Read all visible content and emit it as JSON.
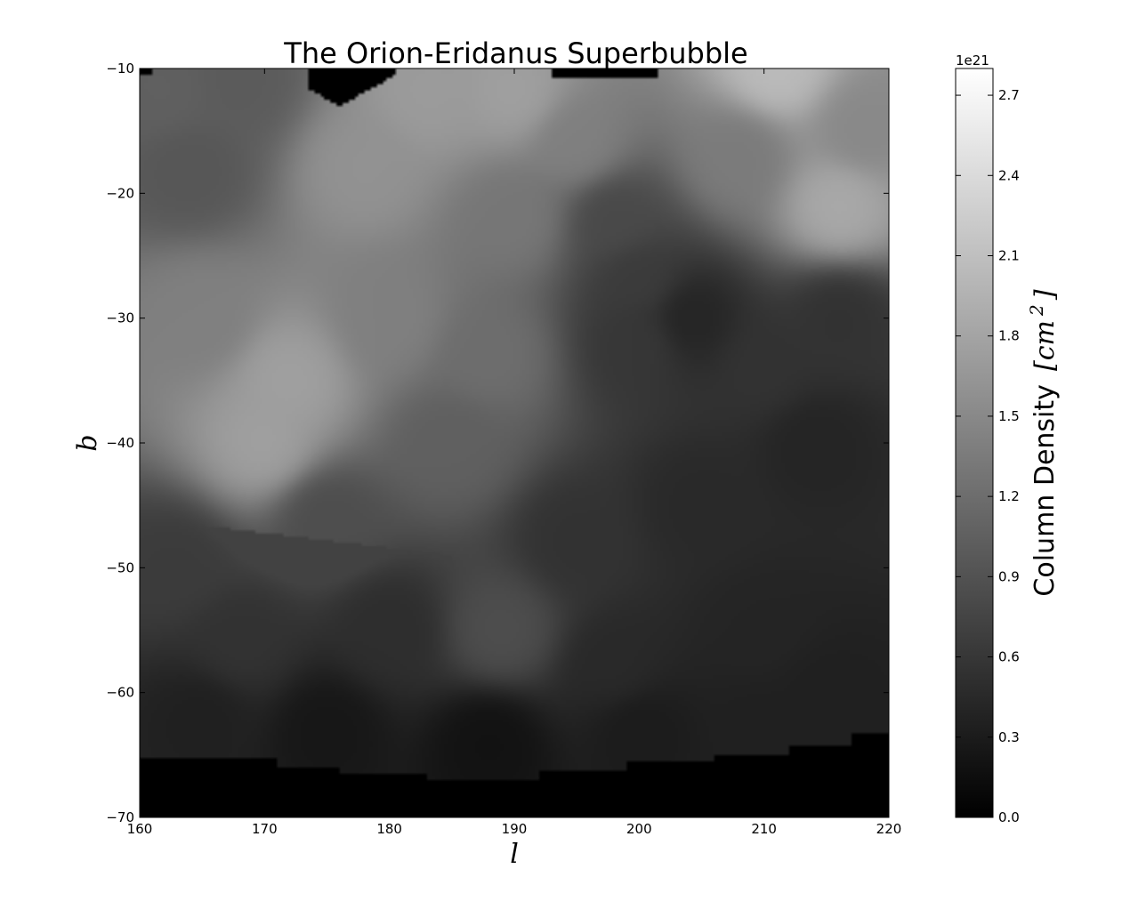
{
  "chart_data": {
    "type": "heatmap",
    "title": "The Orion-Eridanus Superbubble",
    "xlabel": "l",
    "ylabel": "b",
    "xlim": [
      160,
      220
    ],
    "ylim": [
      -70,
      -10
    ],
    "x_ticks": [
      160,
      170,
      180,
      190,
      200,
      210,
      220
    ],
    "y_ticks": [
      -10,
      -20,
      -30,
      -40,
      -50,
      -60,
      -70
    ],
    "x_tick_labels": [
      "160",
      "170",
      "180",
      "190",
      "200",
      "210",
      "220"
    ],
    "y_tick_labels": [
      "−10",
      "−20",
      "−30",
      "−40",
      "−50",
      "−60",
      "−70"
    ],
    "colormap": "gray",
    "colorbar": {
      "label": "Column Density",
      "unit": "[cm",
      "unit_exponent": "2",
      "unit_close": "]",
      "exponent_label": "1e21",
      "range": [
        0.0,
        2.8
      ],
      "ticks": [
        0.0,
        0.3,
        0.6,
        0.9,
        1.2,
        1.5,
        1.8,
        2.1,
        2.4,
        2.7
      ],
      "tick_labels": [
        "0.0",
        "0.3",
        "0.6",
        "0.9",
        "1.2",
        "1.5",
        "1.8",
        "2.1",
        "2.4",
        "2.7"
      ]
    },
    "grid": false,
    "regions": [
      {
        "l": 170,
        "b": -40,
        "value": 1.75
      },
      {
        "l": 172,
        "b": -35,
        "value": 1.75
      },
      {
        "l": 165,
        "b": -30,
        "value": 1.4
      },
      {
        "l": 164,
        "b": -18,
        "value": 0.95
      },
      {
        "l": 162,
        "b": -12,
        "value": 1.05
      },
      {
        "l": 168,
        "b": -11,
        "value": 1.0
      },
      {
        "l": 178,
        "b": -18,
        "value": 1.6
      },
      {
        "l": 183,
        "b": -12,
        "value": 1.7
      },
      {
        "l": 190,
        "b": -12,
        "value": 1.75
      },
      {
        "l": 195,
        "b": -16,
        "value": 1.4
      },
      {
        "l": 190,
        "b": -22,
        "value": 1.3
      },
      {
        "l": 180,
        "b": -30,
        "value": 1.4
      },
      {
        "l": 188,
        "b": -33,
        "value": 1.2
      },
      {
        "l": 185,
        "b": -40,
        "value": 1.05
      },
      {
        "l": 198,
        "b": -22,
        "value": 0.8
      },
      {
        "l": 200,
        "b": -27,
        "value": 0.65
      },
      {
        "l": 204,
        "b": -30,
        "value": 0.4
      },
      {
        "l": 200,
        "b": -32,
        "value": 0.6
      },
      {
        "l": 210,
        "b": -34,
        "value": 0.55
      },
      {
        "l": 208,
        "b": -17,
        "value": 1.35
      },
      {
        "l": 211,
        "b": -10,
        "value": 2.05
      },
      {
        "l": 216,
        "b": -21,
        "value": 1.85
      },
      {
        "l": 218,
        "b": -15,
        "value": 1.5
      },
      {
        "l": 216,
        "b": -30,
        "value": 0.55
      },
      {
        "l": 214,
        "b": -40,
        "value": 0.4
      },
      {
        "l": 205,
        "b": -45,
        "value": 0.45
      },
      {
        "l": 195,
        "b": -48,
        "value": 0.55
      },
      {
        "l": 175,
        "b": -46,
        "value": 0.85
      },
      {
        "l": 163,
        "b": -50,
        "value": 0.65
      },
      {
        "l": 168,
        "b": -56,
        "value": 0.55
      },
      {
        "l": 180,
        "b": -55,
        "value": 0.5
      },
      {
        "l": 189,
        "b": -55,
        "value": 0.85
      },
      {
        "l": 198,
        "b": -58,
        "value": 0.45
      },
      {
        "l": 210,
        "b": -55,
        "value": 0.4
      },
      {
        "l": 215,
        "b": -60,
        "value": 0.35
      },
      {
        "l": 165,
        "b": -62,
        "value": 0.35
      },
      {
        "l": 175,
        "b": -63,
        "value": 0.25
      },
      {
        "l": 188,
        "b": -64,
        "value": 0.2
      },
      {
        "l": 200,
        "b": -63,
        "value": 0.3
      },
      {
        "l": 210,
        "b": -63,
        "value": 0.35
      }
    ],
    "no_data_value": 0.0
  }
}
